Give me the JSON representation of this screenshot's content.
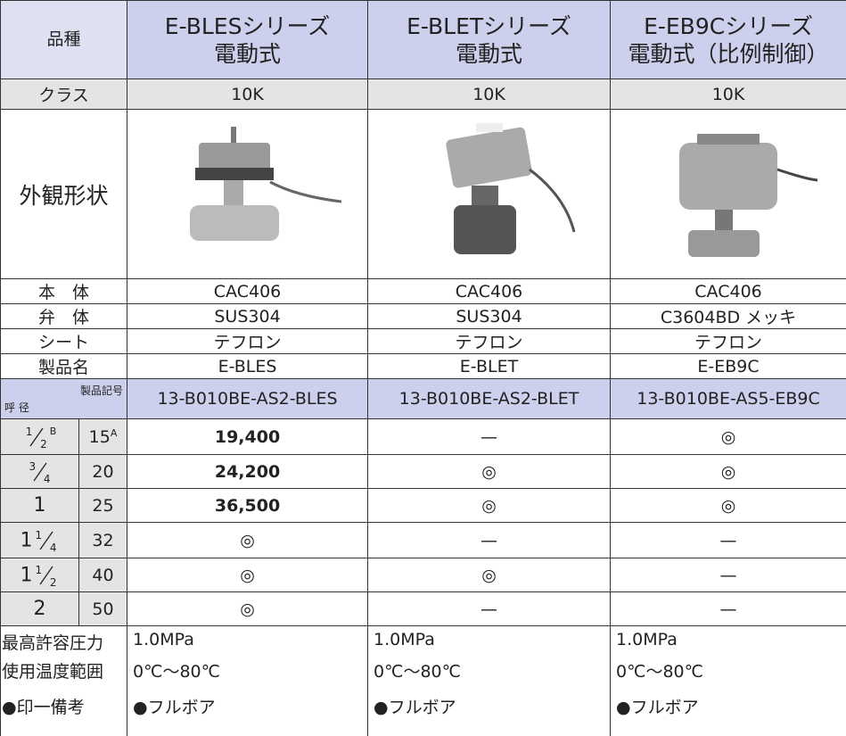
{
  "header": {
    "label": "品種",
    "columns": [
      {
        "series": "E-BLESシリーズ",
        "drive": "電動式"
      },
      {
        "series": "E-BLETシリーズ",
        "drive": "電動式"
      },
      {
        "series": "E-EB9Cシリーズ",
        "drive": "電動式（比例制御）"
      }
    ]
  },
  "class_row": {
    "label": "クラス",
    "values": [
      "10K",
      "10K",
      "10K"
    ]
  },
  "appearance": {
    "label": "外観形状"
  },
  "spec_rows": [
    {
      "label": "本　体",
      "values": [
        "CAC406",
        "CAC406",
        "CAC406"
      ]
    },
    {
      "label": "弁　体",
      "values": [
        "SUS304",
        "SUS304",
        "C3604BD メッキ"
      ]
    },
    {
      "label": "シート",
      "values": [
        "テフロン",
        "テフロン",
        "テフロン"
      ]
    },
    {
      "label": "製品名",
      "values": [
        "E-BLES",
        "E-BLET",
        "E-EB9C"
      ]
    }
  ],
  "code_row": {
    "label_size": "呼 径",
    "label_code": "製品記号",
    "values": [
      "13-B010BE-AS2-BLES",
      "13-B010BE-AS2-BLET",
      "13-B010BE-AS5-EB9C"
    ]
  },
  "size_rows": [
    {
      "inch": {
        "num": "1",
        "den": "2",
        "unit": "B"
      },
      "mm": "15",
      "mm_unit": "A",
      "values": [
        "19,400",
        "—",
        "◎"
      ]
    },
    {
      "inch": {
        "num": "3",
        "den": "4"
      },
      "mm": "20",
      "values": [
        "24,200",
        "◎",
        "◎"
      ]
    },
    {
      "inch": {
        "whole": "1"
      },
      "mm": "25",
      "values": [
        "36,500",
        "◎",
        "◎"
      ]
    },
    {
      "inch": {
        "whole": "1",
        "num": "1",
        "den": "4"
      },
      "mm": "32",
      "values": [
        "◎",
        "—",
        "—"
      ]
    },
    {
      "inch": {
        "whole": "1",
        "num": "1",
        "den": "2"
      },
      "mm": "40",
      "values": [
        "◎",
        "◎",
        "—"
      ]
    },
    {
      "inch": {
        "whole": "2"
      },
      "mm": "50",
      "values": [
        "◎",
        "—",
        "—"
      ]
    }
  ],
  "notes": [
    {
      "label": "最高許容圧力",
      "values": [
        "1.0MPa",
        "1.0MPa",
        "1.0MPa"
      ]
    },
    {
      "label": "使用温度範囲",
      "values": [
        "0℃～80℃",
        "0℃～80℃",
        "0℃～80℃"
      ]
    },
    {
      "label": "●印一備考",
      "values": [
        "●フルボア",
        "●フルボア",
        "●フルボア"
      ]
    }
  ]
}
